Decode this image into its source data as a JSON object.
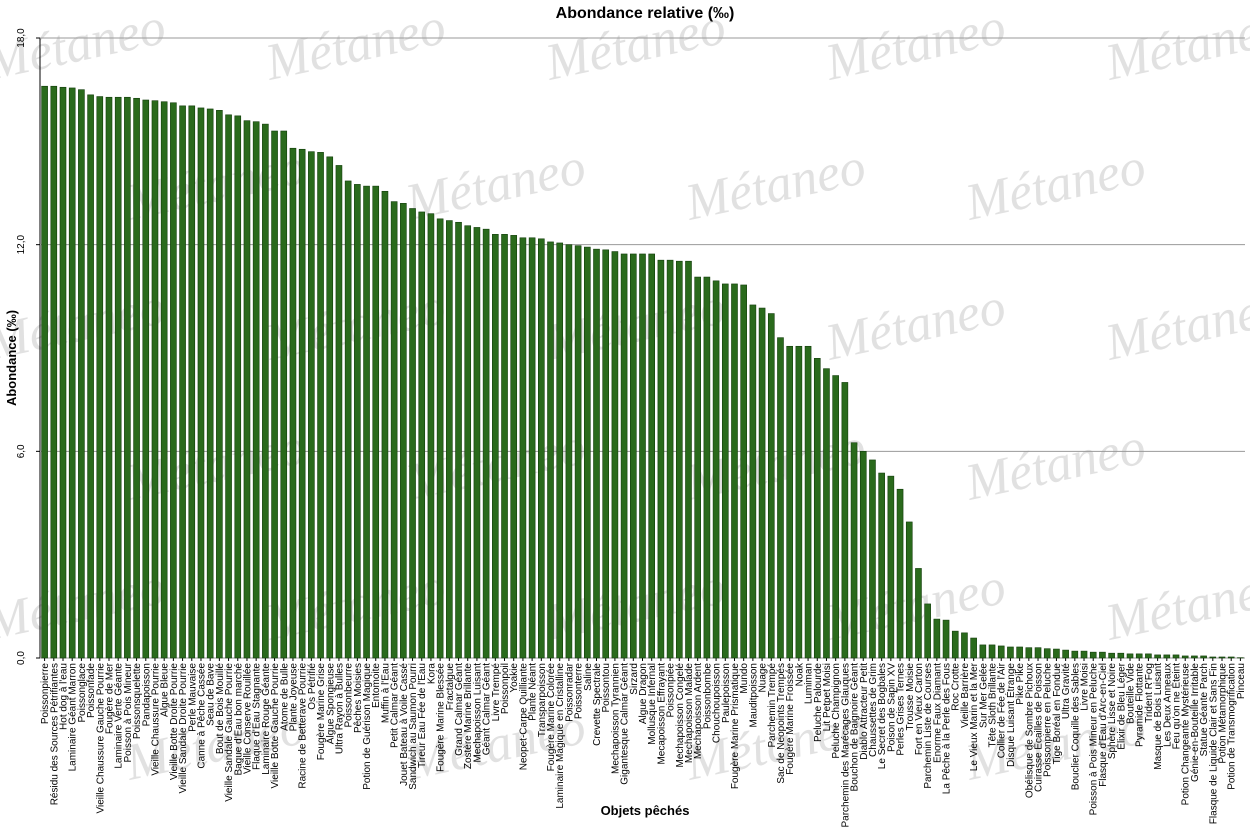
{
  "chart_data": {
    "type": "bar",
    "title": "Abondance relative (‰)",
    "xlabel": "Objets pêchés",
    "ylabel": "Abondance (‰)",
    "watermark": "Métaneo",
    "color": "#2a6a1c",
    "grid": true,
    "ylim": [
      0,
      18
    ],
    "yticks": [
      {
        "value": 0,
        "label": "0,0"
      },
      {
        "value": 6,
        "label": "6,0"
      },
      {
        "value": 12,
        "label": "12,0"
      },
      {
        "value": 18,
        "label": "18,0"
      }
    ],
    "categories": [
      "Poissonpierre",
      "Résidu des Sources Pétrifiantes",
      "Hot dog à l'eau",
      "Laminaire Géant Marron",
      "Poissonglace",
      "Poissonfade",
      "Vieille Chaussure Gauche Pourrie",
      "Fougère de Mer",
      "Laminaire Verte Géante",
      "Poisson à Pois Mineur",
      "Poissonsquelette",
      "Pandapoisson",
      "Vieille Chaussure Pourrie",
      "Algue Bleue",
      "Vieille Botte Droite Pourrie",
      "Vieille Sandale Droite Pourrie",
      "Perle Mauvaise",
      "Canne à Pêche Cassée",
      "Seau de Bave",
      "Bout de Bois Mouillé",
      "Vieille Sandale Gauche Pourrie",
      "Bague d'Eau bon marché",
      "Vieille Conserve Rouillée",
      "Flaque d'Eau Stagnante",
      "Laminaire Rouge Géante",
      "Vieille Botte Gauche Pourrie",
      "Atome de Bulle",
      "Plante Joyeuse",
      "Racine de Betterave Pourrie",
      "Os Pétrifié",
      "Fougère Marine Grise",
      "Algue Spongieuse",
      "Ultra Rayon à Bulles",
      "Poissonbeurre",
      "Pêches Moisies",
      "Potion de Guérison Magique",
      "Entomoite",
      "Muffin à l'Eau",
      "Petit Calmar Géant",
      "Jouet Bateau à Voile Cassé",
      "Sandwich au Saumon Pourri",
      "Tireur Eau Fée de l'Eau",
      "Kora",
      "Fougère Marine Blessée",
      "Fractalgue",
      "Grand Calmar Géant",
      "Zostère Marine Brillante",
      "Mechapoisson Luisant",
      "Géant Calmar Géant",
      "Livre Trempé",
      "Poissonpoil",
      "Yoakie",
      "Neopet-Carpe Quilliante",
      "Plante Néant",
      "Transparpoisson",
      "Fougère Marine Colorée",
      "Laminaire Magique en Cristalline",
      "Poissonradar",
      "Poissonterre",
      "Saline",
      "Crevette Spectrale",
      "Poissontou",
      "Mechapoisson Tyrannien",
      "Gigantesque Calmar Géant",
      "Sirzard",
      "Algue Dragon",
      "Mollusque Infernal",
      "Mecapoisson Effrayant",
      "Poissonpiée",
      "Mechapoisson Congelé",
      "Mechapoisson Malade",
      "Mechapoisson Ardent",
      "Poissonbombe",
      "Chouchoupoisson",
      "Paulepoisson",
      "Fougère Marine Prismatique",
      "Mundo",
      "Mauditpoisson",
      "Nuage",
      "Parchemin Trempé",
      "Sac de Neopoints Trempés",
      "Fougère Marine Froissée",
      "Noak",
      "Lumiman",
      "Peluche Palourde",
      "Lit Petpet Moisi",
      "Peluche Champignon",
      "Parchemin des Marécages Glauques",
      "Bouchon de Baignoire Géant",
      "Diablo Attracteur Petit",
      "Chaussettes de Grim",
      "Le Secret des Bogbales",
      "Poison de Sapin XV",
      "Perles Grises Ternes",
      "Trousse Moisie",
      "Fort en Vieux Carton",
      "Parchemin Liste de Courses",
      "Enorme Faux Diamant",
      "La Pêche à la Perle des Fous",
      "Roc Crotte",
      "Vieille Barrière",
      "Le Vieux Marin et la Mer",
      "Sur Mer Gelée",
      "Tête Sloth Brillante",
      "Collier de Fée de l'Air",
      "Disque Luisant Étrange",
      "Pike Pike",
      "Obélisque de Sombre Pichoux",
      "Cuirasse Écailles de Poisson",
      "Poissonpierre en Peluche",
      "Tige Boréal en Fondue",
      "Ultra Gravité",
      "Bouclier Coquille des Sables",
      "Livre Moisi",
      "Poisson à Pois Mineur en Peluche",
      "Flasque d'Eau d'Arc-en-Ciel",
      "Sphère Lisse et Noire",
      "Élixir de Bleu Léger",
      "Bouteille Vide",
      "Pyramide Flottante",
      "Trident R'Fog",
      "Masque de Bois Luisant",
      "Les Deux Anneaux",
      "Feu qu'on ne Éteint",
      "Potion Changeante Mystérieuse",
      "Génie-en-Bouteille Irritable",
      "Statue Géante Parch",
      "Flasque de Liquide Clair et Sans Fin",
      "Potion Métamorphique",
      "Potion de Transmogrification",
      "Pinceau"
    ],
    "values": [
      16.6,
      16.6,
      16.57,
      16.55,
      16.5,
      16.35,
      16.3,
      16.28,
      16.28,
      16.28,
      16.25,
      16.2,
      16.18,
      16.15,
      16.12,
      16.03,
      16.03,
      15.97,
      15.94,
      15.9,
      15.77,
      15.74,
      15.6,
      15.57,
      15.5,
      15.3,
      15.3,
      14.8,
      14.77,
      14.7,
      14.68,
      14.55,
      14.3,
      13.85,
      13.75,
      13.7,
      13.7,
      13.55,
      13.25,
      13.2,
      13.05,
      12.95,
      12.9,
      12.75,
      12.7,
      12.65,
      12.55,
      12.5,
      12.45,
      12.3,
      12.3,
      12.27,
      12.2,
      12.2,
      12.17,
      12.08,
      12.05,
      12.0,
      11.97,
      11.93,
      11.87,
      11.85,
      11.8,
      11.73,
      11.73,
      11.73,
      11.73,
      11.55,
      11.55,
      11.52,
      11.52,
      11.06,
      11.06,
      10.95,
      10.86,
      10.86,
      10.83,
      10.25,
      10.16,
      10.0,
      9.3,
      9.05,
      9.05,
      9.05,
      8.7,
      8.4,
      8.2,
      8.0,
      6.25,
      6.0,
      5.75,
      5.37,
      5.28,
      4.9,
      3.95,
      2.6,
      1.57,
      1.13,
      1.1,
      0.78,
      0.73,
      0.58,
      0.38,
      0.38,
      0.35,
      0.32,
      0.32,
      0.3,
      0.3,
      0.27,
      0.26,
      0.23,
      0.2,
      0.2,
      0.17,
      0.17,
      0.14,
      0.14,
      0.12,
      0.12,
      0.12,
      0.09,
      0.09,
      0.09,
      0.06,
      0.06,
      0.06,
      0.03,
      0.03,
      0.03,
      0.01
    ]
  }
}
